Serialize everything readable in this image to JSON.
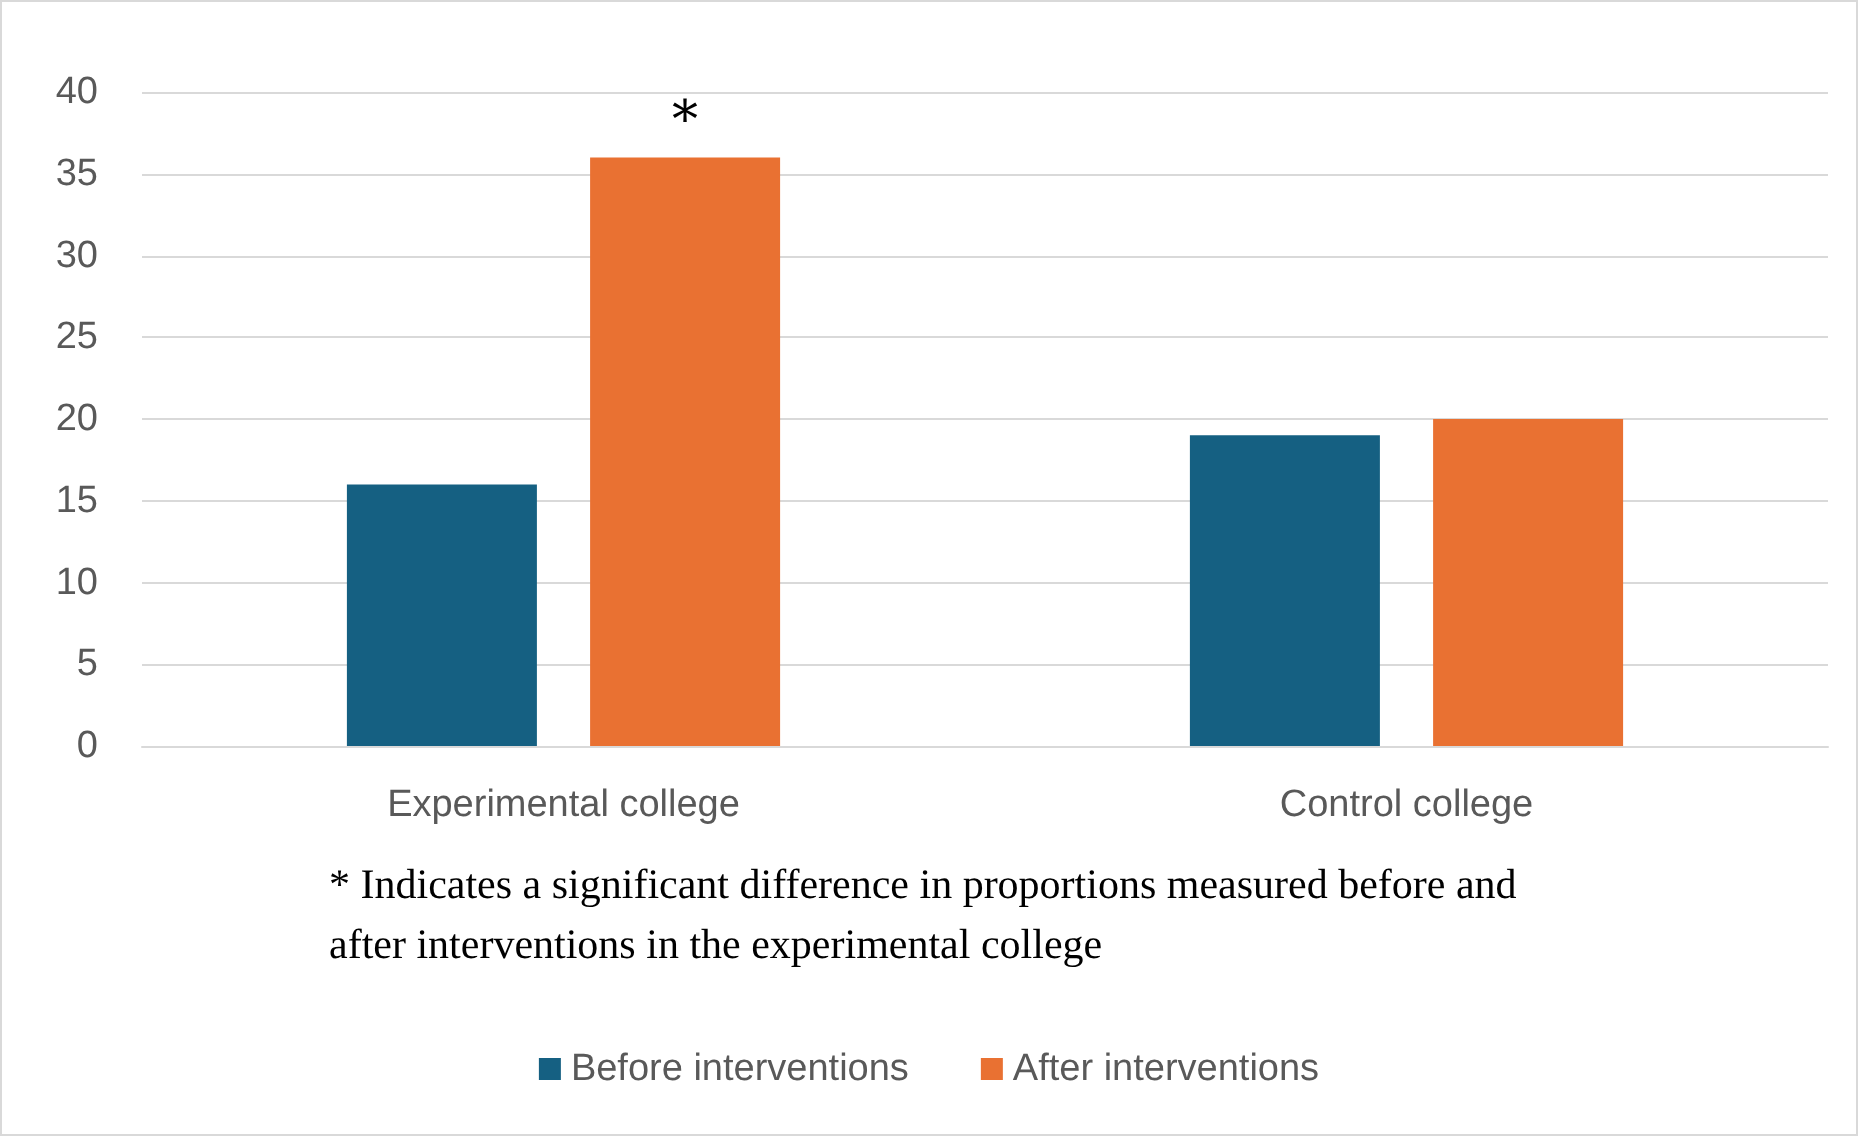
{
  "chart_data": {
    "type": "bar",
    "categories": [
      "Experimental college",
      "Control college"
    ],
    "series": [
      {
        "name": "Before interventions",
        "color": "#156082",
        "values": [
          16,
          19
        ]
      },
      {
        "name": "After interventions",
        "color": "#e97132",
        "values": [
          36,
          20
        ]
      }
    ],
    "ylim": [
      0,
      40
    ],
    "yticks": [
      0,
      5,
      10,
      15,
      20,
      25,
      30,
      35,
      40
    ],
    "grid": "y",
    "legend": "bottom",
    "annotations": [
      "*",
      "* Indicates a significant difference in proportions measured before and after interventions in the experimental college"
    ]
  }
}
